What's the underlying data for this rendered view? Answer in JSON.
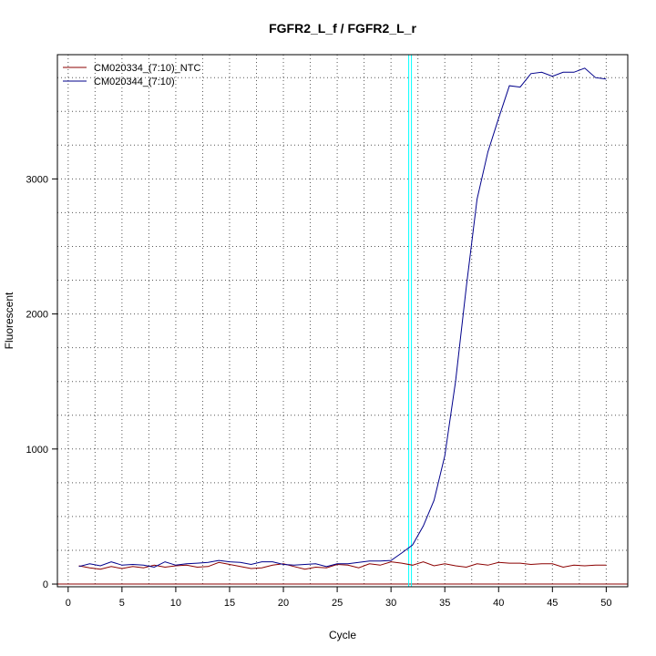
{
  "chart_data": {
    "type": "line",
    "title": "FGFR2_L_f / FGFR2_L_r",
    "xlabel": "Cycle",
    "ylabel": "Fluorescent",
    "xlim": [
      -1,
      52
    ],
    "ylim": [
      -20,
      3920
    ],
    "x_ticks": [
      0,
      5,
      10,
      15,
      20,
      25,
      30,
      35,
      40,
      45,
      50
    ],
    "y_ticks": [
      0,
      1000,
      2000,
      3000
    ],
    "grid": true,
    "legend_position": "top-left",
    "threshold_cycle": 31.9,
    "baseline_value": 0,
    "x": [
      1,
      2,
      3,
      4,
      5,
      6,
      7,
      8,
      9,
      10,
      11,
      12,
      13,
      14,
      15,
      16,
      17,
      18,
      19,
      20,
      21,
      22,
      23,
      24,
      25,
      26,
      27,
      28,
      29,
      30,
      31,
      32,
      33,
      34,
      35,
      36,
      37,
      38,
      39,
      40,
      41,
      42,
      43,
      44,
      45,
      46,
      47,
      48,
      49,
      50
    ],
    "series": [
      {
        "name": "CM020334_(7:10)_NTC",
        "color": "#8b0000",
        "values": [
          135,
          120,
          110,
          130,
          115,
          130,
          120,
          140,
          125,
          135,
          140,
          125,
          130,
          160,
          145,
          130,
          115,
          120,
          140,
          150,
          130,
          110,
          125,
          120,
          145,
          140,
          120,
          150,
          140,
          165,
          155,
          140,
          165,
          135,
          150,
          135,
          125,
          150,
          140,
          160,
          155,
          155,
          145,
          150,
          150,
          125,
          140,
          135,
          140,
          140
        ]
      },
      {
        "name": "CM020344_(7:10)",
        "color": "#00008b",
        "values": [
          130,
          150,
          135,
          165,
          140,
          145,
          140,
          125,
          165,
          140,
          150,
          155,
          160,
          175,
          165,
          160,
          145,
          165,
          165,
          145,
          140,
          145,
          150,
          130,
          150,
          150,
          160,
          170,
          170,
          175,
          230,
          290,
          430,
          620,
          950,
          1500,
          2200,
          2850,
          3200,
          3450,
          3690,
          3680,
          3780,
          3790,
          3760,
          3790,
          3790,
          3820,
          3750,
          3740
        ]
      }
    ]
  },
  "colors": {
    "threshold_line": "#00ffff",
    "baseline_line": "#8b0000",
    "grid": "#555555"
  }
}
